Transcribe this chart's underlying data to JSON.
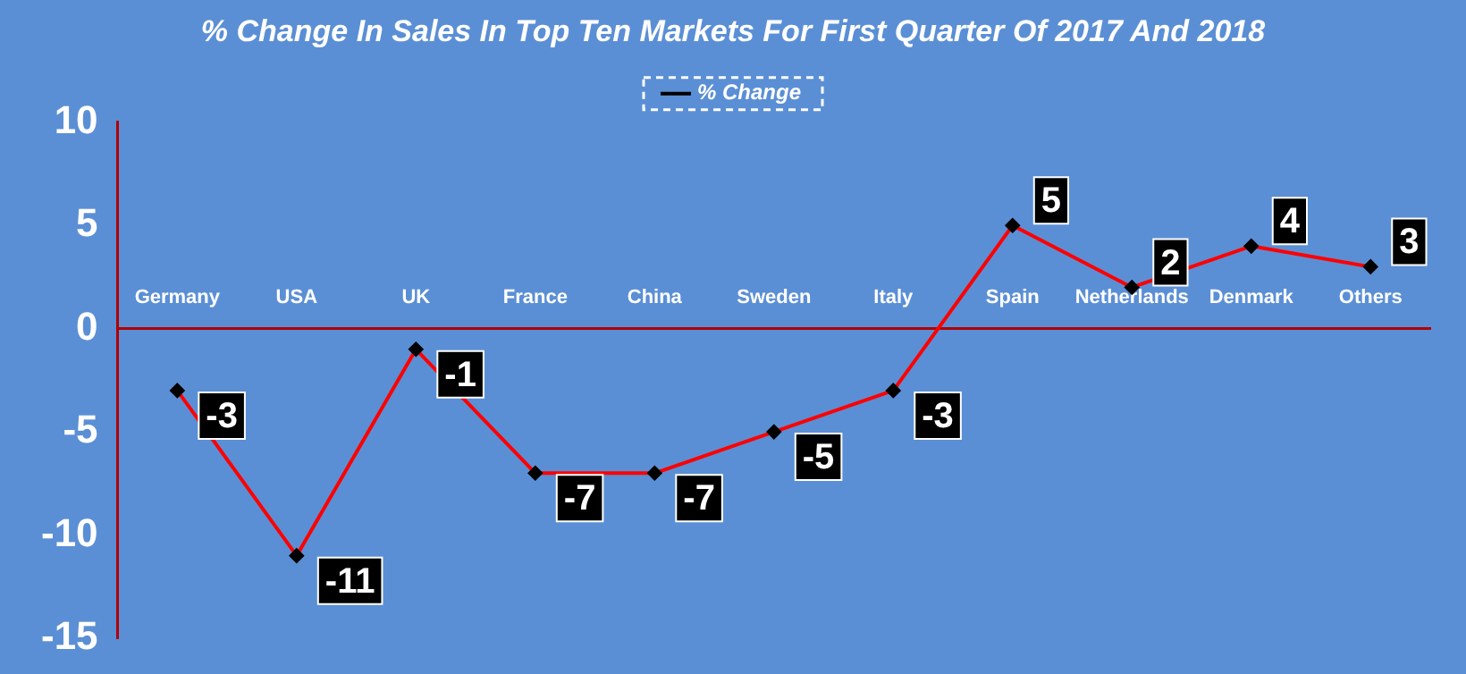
{
  "chart_data": {
    "type": "line",
    "title": "% Change In Sales In Top Ten Markets For First Quarter Of 2017 And 2018",
    "categories": [
      "Germany",
      "USA",
      "UK",
      "France",
      "China",
      "Sweden",
      "Italy",
      "Spain",
      "Netherlands",
      "Denmark",
      "Others"
    ],
    "series": [
      {
        "name": "% Change",
        "color": "#ff0000",
        "values": [
          -3,
          -11,
          -1,
          -7,
          -7,
          -5,
          -3,
          5,
          2,
          4,
          3
        ]
      }
    ],
    "ylim": [
      -15,
      10
    ],
    "yticks": [
      -15,
      -10,
      -5,
      0,
      5,
      10
    ],
    "grid": false,
    "legend": "top",
    "marker": "diamond",
    "line_style": "solid",
    "data_labels": true
  }
}
